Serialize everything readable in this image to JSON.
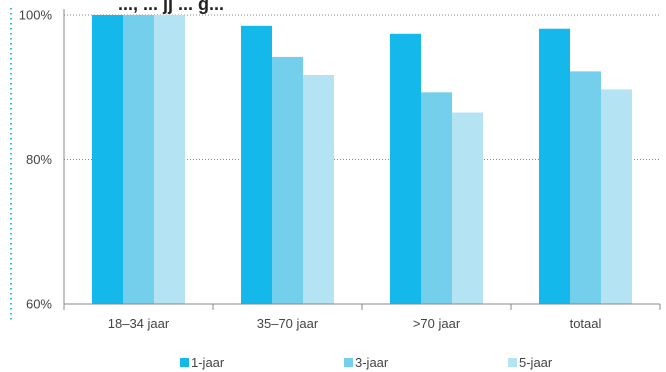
{
  "chart_data": {
    "type": "bar",
    "title_visible_fragment": "..., ... jj ... g...",
    "categories": [
      "18–34 jaar",
      "35–70 jaar",
      ">70 jaar",
      "totaal"
    ],
    "series": [
      {
        "name": "1-jaar",
        "color": "#14b8ea",
        "values": [
          100.0,
          98.5,
          97.4,
          98.1
        ]
      },
      {
        "name": "3-jaar",
        "color": "#74cfec",
        "values": [
          100.0,
          94.2,
          89.3,
          92.2
        ]
      },
      {
        "name": "5-jaar",
        "color": "#b4e3f4",
        "values": [
          100.0,
          91.7,
          86.5,
          89.7
        ]
      }
    ],
    "yticks": [
      "60%",
      "80%",
      "100%"
    ],
    "ytick_values": [
      60,
      80,
      100
    ],
    "ylim": [
      60,
      100
    ],
    "xlabel": "",
    "ylabel": "",
    "grid": "horizontal dotted at 80% and 100%",
    "legend_position": "bottom"
  }
}
